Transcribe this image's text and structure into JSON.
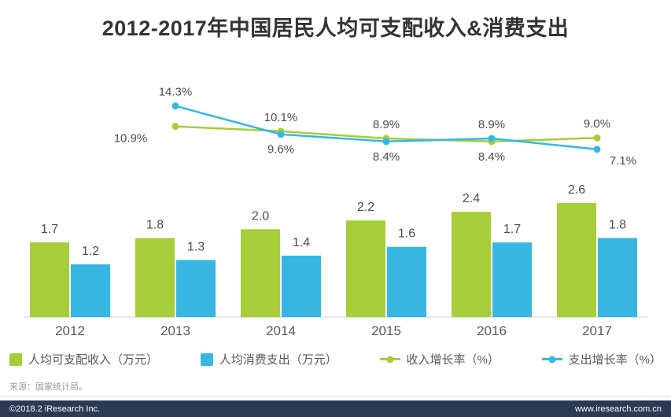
{
  "source_note": "来源：国家统计局。",
  "footer": {
    "copyright": "©2018.2 iResearch Inc.",
    "website": "www.iresearch.com.cn",
    "bg_color": "#2b3a52"
  },
  "colors": {
    "green": "#a5ce39",
    "blue": "#36b7e3",
    "axis": "#cccccc",
    "label": "#4d4d4d",
    "title": "#333333"
  },
  "chart_data": {
    "type": "combo",
    "title": "2012-2017年中国居民人均可支配收入&消费支出",
    "categories": [
      "2012",
      "2013",
      "2014",
      "2015",
      "2016",
      "2017"
    ],
    "series": [
      {
        "name": "人均可支配收入（万元）",
        "type": "bar",
        "color": "#a5ce39",
        "values": [
          1.7,
          1.8,
          2.0,
          2.2,
          2.4,
          2.6
        ]
      },
      {
        "name": "人均消费支出（万元）",
        "type": "bar",
        "color": "#36b7e3",
        "values": [
          1.2,
          1.3,
          1.4,
          1.6,
          1.7,
          1.8
        ]
      },
      {
        "name": "收入增长率（%）",
        "type": "line",
        "color": "#a5ce39",
        "values": [
          null,
          10.9,
          10.1,
          8.9,
          8.4,
          9.0
        ]
      },
      {
        "name": "支出增长率（%）",
        "type": "line",
        "color": "#36b7e3",
        "values": [
          null,
          14.3,
          9.6,
          8.4,
          8.9,
          7.1
        ]
      }
    ],
    "line_label_suffix": "%",
    "bar_label_decimals": 1,
    "legend_position": "bottom",
    "grid": false
  }
}
